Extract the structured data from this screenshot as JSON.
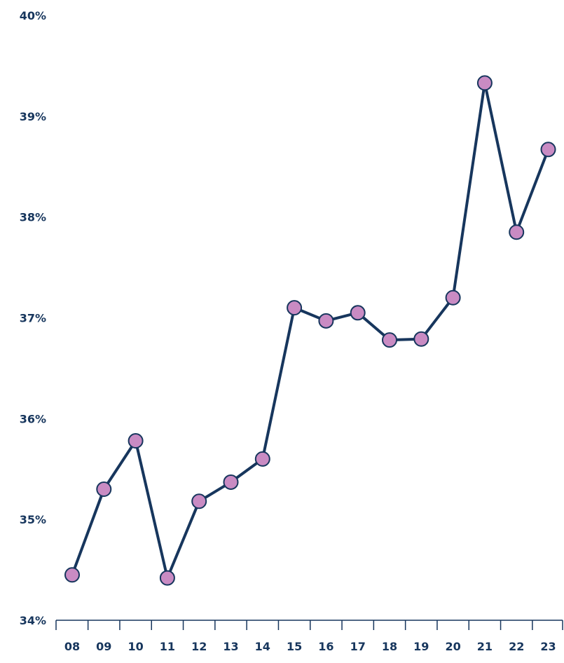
{
  "chart_data": {
    "type": "line",
    "title": "",
    "xlabel": "",
    "ylabel": "",
    "categories": [
      "08",
      "09",
      "10",
      "11",
      "12",
      "13",
      "14",
      "15",
      "16",
      "17",
      "18",
      "19",
      "20",
      "21",
      "22",
      "23"
    ],
    "series": [
      {
        "values": [
          34.45,
          35.3,
          35.78,
          34.42,
          35.18,
          35.37,
          35.6,
          37.1,
          36.97,
          37.05,
          36.78,
          36.79,
          37.2,
          39.33,
          37.85,
          38.67
        ]
      }
    ],
    "ylim": [
      34,
      40
    ],
    "y_ticks": [
      "34%",
      "35%",
      "36%",
      "37%",
      "38%",
      "39%",
      "40%"
    ],
    "y_tick_values": [
      34,
      35,
      36,
      37,
      38,
      39,
      40
    ],
    "grid": false,
    "legend": "none"
  },
  "colors": {
    "line": "#17365d",
    "marker_fill": "#c98bc3",
    "marker_stroke": "#17365d",
    "text": "#17365d",
    "axis": "#17365d"
  }
}
